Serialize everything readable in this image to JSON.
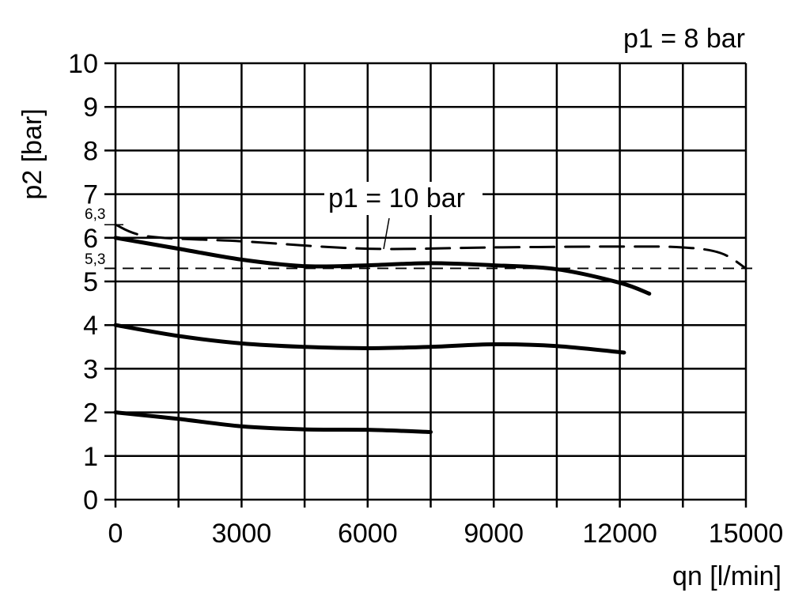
{
  "chart_data": {
    "type": "line",
    "title": "",
    "xlabel": "qn [l/min]",
    "ylabel": "p2 [bar]",
    "xlim": [
      0,
      15000
    ],
    "ylim": [
      0,
      10
    ],
    "x_ticks": [
      0,
      3000,
      6000,
      9000,
      12000,
      15000
    ],
    "x_tick_labels": [
      "0",
      "3000",
      "6000",
      "9000",
      "12000",
      "15000"
    ],
    "y_ticks": [
      0,
      1,
      2,
      3,
      4,
      5,
      6,
      7,
      8,
      9,
      10
    ],
    "y_tick_labels": [
      "0",
      "1",
      "2",
      "3",
      "4",
      "5",
      "6",
      "7",
      "8",
      "9",
      "10"
    ],
    "x_grid_step": 1500,
    "y_grid_step": 1,
    "grid": true,
    "annotations": {
      "p1_8": "p1 = 8 bar",
      "p1_10": "p1 = 10 bar",
      "ref_high": "6,3",
      "ref_low": "5,3"
    },
    "reference_lines": [
      {
        "y": 5.3,
        "style": "dashed"
      }
    ],
    "series": [
      {
        "style": "solid",
        "points": [
          [
            0,
            2.0
          ],
          [
            1500,
            1.85
          ],
          [
            3000,
            1.68
          ],
          [
            4500,
            1.61
          ],
          [
            6000,
            1.6
          ],
          [
            7500,
            1.55
          ]
        ]
      },
      {
        "style": "solid",
        "points": [
          [
            0,
            4.0
          ],
          [
            1500,
            3.75
          ],
          [
            3000,
            3.58
          ],
          [
            4500,
            3.5
          ],
          [
            6000,
            3.47
          ],
          [
            7500,
            3.5
          ],
          [
            9000,
            3.56
          ],
          [
            10500,
            3.52
          ],
          [
            12100,
            3.37
          ]
        ]
      },
      {
        "style": "solid",
        "points": [
          [
            0,
            6.0
          ],
          [
            1500,
            5.75
          ],
          [
            3000,
            5.5
          ],
          [
            4500,
            5.35
          ],
          [
            6000,
            5.37
          ],
          [
            7500,
            5.42
          ],
          [
            9000,
            5.37
          ],
          [
            10500,
            5.28
          ],
          [
            12000,
            4.97
          ],
          [
            12700,
            4.72
          ]
        ]
      },
      {
        "name": "p1 = 10 bar",
        "style": "dashed",
        "points": [
          [
            0,
            6.3
          ],
          [
            800,
            6.03
          ],
          [
            3000,
            5.92
          ],
          [
            6000,
            5.75
          ],
          [
            9000,
            5.78
          ],
          [
            12000,
            5.8
          ],
          [
            13500,
            5.78
          ],
          [
            14400,
            5.65
          ],
          [
            15000,
            5.3
          ]
        ]
      }
    ]
  }
}
